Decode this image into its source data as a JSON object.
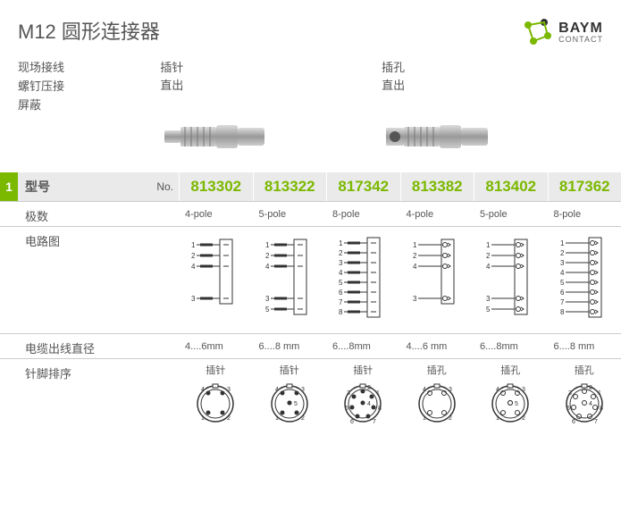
{
  "header": {
    "title": "M12  圆形连接器",
    "brand": "BAYM",
    "brand_sub": "CONTACT",
    "logo_color": "#7bb800",
    "logo_accent": "#333333"
  },
  "left_specs": [
    "现场接线",
    "螺钉压接",
    "屏蔽"
  ],
  "groups": [
    {
      "label_line1": "插针",
      "label_line2": "直出"
    },
    {
      "label_line1": "插孔",
      "label_line2": "直出"
    }
  ],
  "model_row": {
    "badge": "1",
    "label": "型号",
    "no_label": "No."
  },
  "models": [
    "813302",
    "813322",
    "817342",
    "813382",
    "813402",
    "817362"
  ],
  "rows": {
    "poles": {
      "label": "极数",
      "values": [
        "4-pole",
        "5-pole",
        "8-pole",
        "4-pole",
        "5-pole",
        "8-pole"
      ]
    },
    "circuit": {
      "label": "电路图",
      "pin_counts": [
        4,
        5,
        8,
        4,
        5,
        8
      ],
      "types": [
        "pin",
        "pin",
        "pin",
        "socket",
        "socket",
        "socket"
      ]
    },
    "cable": {
      "label": "电缆出线直径",
      "values": [
        "4....6mm",
        "6....8 mm",
        "6....8mm",
        "4....6 mm",
        "6....8mm",
        "6....8 mm"
      ]
    },
    "pinout": {
      "label": "针脚排序",
      "sub_labels": [
        "插针",
        "插针",
        "插针",
        "插孔",
        "插孔",
        "插孔"
      ],
      "pin_counts": [
        4,
        5,
        8,
        4,
        5,
        8
      ]
    }
  },
  "colors": {
    "accent": "#7bb800",
    "header_bg": "#eaeaea",
    "text": "#555555",
    "border": "#cccccc",
    "diagram_stroke": "#333333"
  }
}
